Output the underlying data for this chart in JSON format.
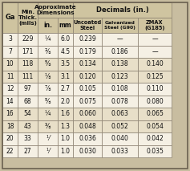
{
  "header_bg": "#cfc4a0",
  "row_bg_tan": "#e8dfc8",
  "row_bg_white": "#f5f0e4",
  "outer_bg": "#c8bda0",
  "border_color": "#8a8070",
  "text_color": "#111111",
  "rows": [
    [
      "3",
      "229",
      "¼",
      "6.0",
      "0.239",
      "—",
      "—"
    ],
    [
      "7",
      "171",
      "⅜",
      "4.5",
      "0.179",
      "0.186",
      "—"
    ],
    [
      "10",
      "118",
      "⅝",
      "3.5",
      "0.134",
      "0.138",
      "0.140"
    ],
    [
      "11",
      "111",
      "⅛",
      "3.1",
      "0.120",
      "0.123",
      "0.125"
    ],
    [
      "12",
      "97",
      "⅞",
      "2.7",
      "0.105",
      "0.108",
      "0.110"
    ],
    [
      "14",
      "68",
      "⅝",
      "2.0",
      "0.075",
      "0.078",
      "0.080"
    ],
    [
      "16",
      "54",
      "¼",
      "1.6",
      "0.060",
      "0.063",
      "0.065"
    ],
    [
      "18",
      "43",
      "⅜",
      "1.3",
      "0.048",
      "0.052",
      "0.054"
    ],
    [
      "20",
      "33",
      "⅟",
      "1.0",
      "0.036",
      "0.040",
      "0.042"
    ],
    [
      "22",
      "27",
      "⅟",
      "1.0",
      "0.030",
      "0.033",
      "0.035"
    ]
  ],
  "figw": 2.37,
  "figh": 2.13,
  "dpi": 100
}
